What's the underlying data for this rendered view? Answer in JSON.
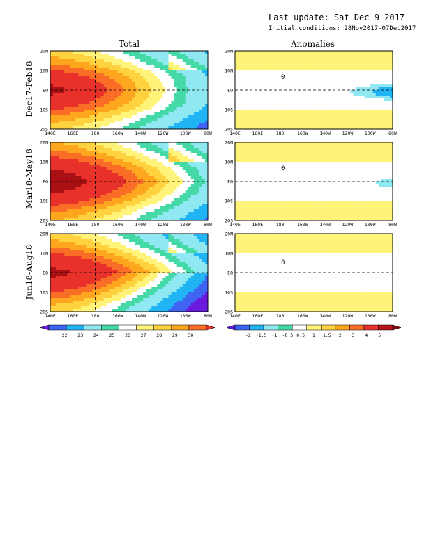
{
  "header": {
    "last_update": "Last update: Sat Dec 9 2017",
    "initial_conditions": "Initial conditions: 28Nov2017-07Dec2017"
  },
  "columns": {
    "total": "Total",
    "anomalies": "Anomalies"
  },
  "rows": [
    {
      "label": "Dec17-Feb18"
    },
    {
      "label": "Mar18-May18"
    },
    {
      "label": "Jun18-Aug18"
    }
  ],
  "chart_data": {
    "type": "heatmap",
    "lon_ticks": [
      "140E",
      "160E",
      "180",
      "160W",
      "140W",
      "120W",
      "100W",
      "80W"
    ],
    "lat_ticks": [
      "20N",
      "10N",
      "EQ",
      "10S",
      "20S"
    ],
    "lon_range": [
      140,
      280
    ],
    "lat_range": [
      -20,
      20
    ],
    "total_colorbar": {
      "labels": [
        "22",
        "23",
        "24",
        "25",
        "26",
        "27",
        "28",
        "29",
        "30"
      ],
      "colors": [
        "#6a1adc",
        "#3f63f2",
        "#21b4f5",
        "#8fe8f2",
        "#44d9a6",
        "#ffffff",
        "#fff37a",
        "#ffd23f",
        "#ffa61f",
        "#f96d26",
        "#e8312a"
      ]
    },
    "anomaly_colorbar": {
      "labels": [
        "-2",
        "-1.5",
        "-1",
        "-0.5",
        "0.5",
        "1",
        "1.5",
        "2",
        "3",
        "4",
        "5"
      ],
      "colors": [
        "#5a1bdc",
        "#3f63f2",
        "#21b4f5",
        "#8fe8f2",
        "#44d9a6",
        "#ffffff",
        "#fff37a",
        "#ffd23f",
        "#ffa61f",
        "#f96d26",
        "#e8312a",
        "#b8141c",
        "#7a0a12"
      ]
    },
    "contour_labels": [
      "0"
    ],
    "colors": {
      "total": [
        "#6a1adc",
        "#3f63f2",
        "#21b4f5",
        "#8fe8f2",
        "#44d9a6",
        "#ffffff",
        "#fff37a",
        "#ffd23f",
        "#ffa61f",
        "#f96d26",
        "#e8312a",
        "#a81014"
      ],
      "anomaly": [
        "#5a1bdc",
        "#3f63f2",
        "#21b4f5",
        "#8fe8f2",
        "#ffffff",
        "#fff37a",
        "#ffd23f"
      ]
    }
  }
}
